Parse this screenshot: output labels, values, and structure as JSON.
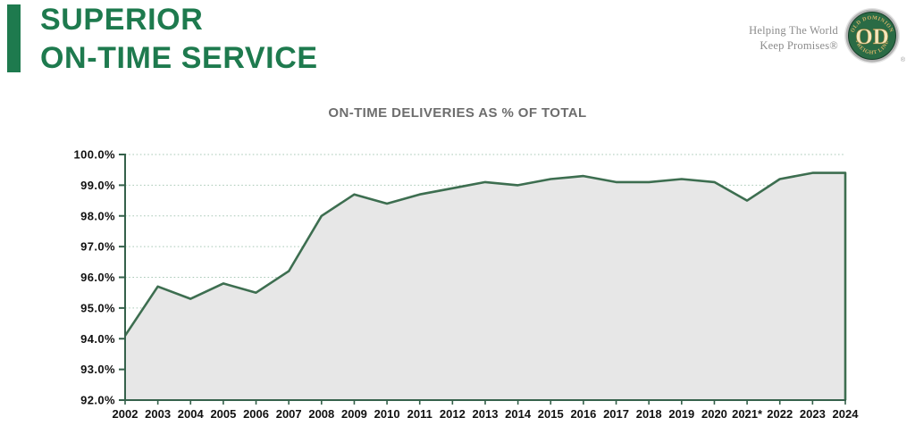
{
  "header": {
    "title_line1": "SUPERIOR",
    "title_line2": "ON-TIME SERVICE"
  },
  "brand": {
    "tagline_line1": "Helping The World",
    "tagline_line2": "Keep Promises®",
    "logo_top_text": "OLD DOMINION",
    "logo_bottom_text": "FREIGHT LINE",
    "logo_monogram": "OD",
    "registered_mark": "®"
  },
  "colors": {
    "accent_green": "#1e7a4e",
    "line_green": "#3d6e50",
    "axis_green": "#35614b",
    "grid_green": "#a9c9b7",
    "area_fill": "#e7e7e7",
    "title_gray": "#6d6d6d",
    "tick_black": "#111111",
    "tagline_gray": "#8c8c8c"
  },
  "chart_data": {
    "type": "area",
    "title": "ON-TIME DELIVERIES AS % OF TOTAL",
    "categories": [
      "2002",
      "2003",
      "2004",
      "2005",
      "2006",
      "2007",
      "2008",
      "2009",
      "2010",
      "2011",
      "2012",
      "2013",
      "2014",
      "2015",
      "2016",
      "2017",
      "2018",
      "2019",
      "2020",
      "2021*",
      "2022",
      "2023",
      "2024"
    ],
    "values": [
      94.1,
      95.7,
      95.3,
      95.8,
      95.5,
      96.2,
      98.0,
      98.7,
      98.4,
      98.7,
      98.9,
      99.1,
      99.0,
      99.2,
      99.3,
      99.1,
      99.1,
      99.2,
      99.1,
      98.5,
      99.2,
      99.4,
      99.4
    ],
    "ylim": [
      92,
      100
    ],
    "ytick_step": 1,
    "ytick_labels": [
      "100.0%",
      "99.0%",
      "98.0%",
      "97.0%",
      "96.0%",
      "95.0%",
      "94.0%",
      "93.0%",
      "92.0%"
    ],
    "grid": "horizontal-dotted",
    "legend": "none"
  }
}
